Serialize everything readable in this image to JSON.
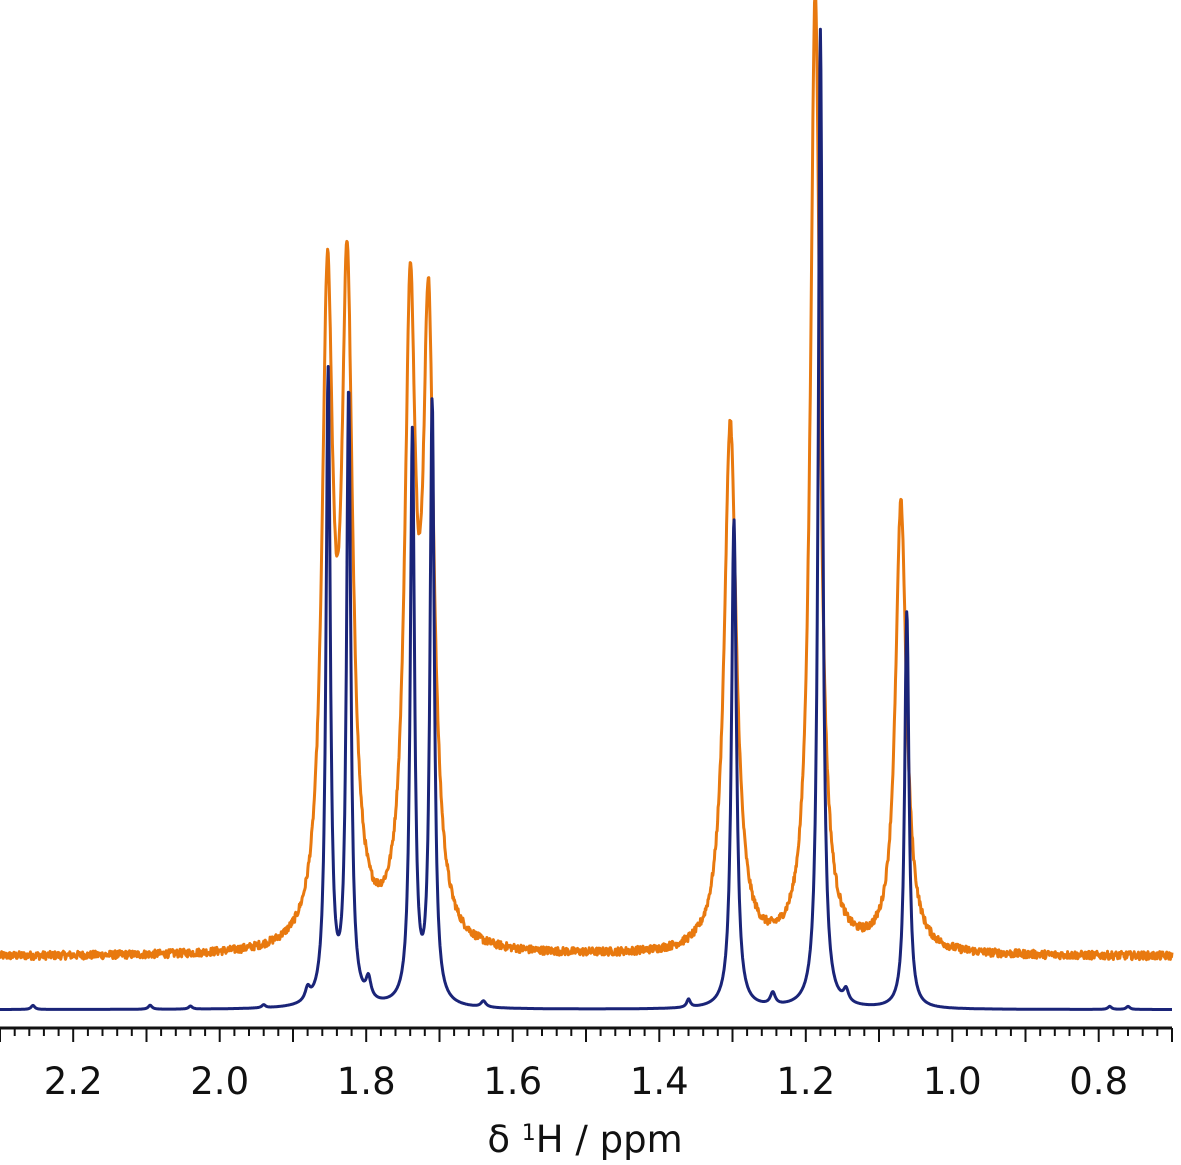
{
  "chart_data": {
    "type": "line",
    "title": "",
    "xlabel": {
      "prefix": "δ ",
      "superscript": "1",
      "suffix": "H / ppm"
    },
    "ylabel": "",
    "x_reversed": true,
    "xlim": [
      2.3,
      0.7
    ],
    "ylim": [
      0,
      1.0
    ],
    "grid": false,
    "legend": "none",
    "x_ticks_major": [
      2.2,
      2.0,
      1.8,
      1.6,
      1.4,
      1.2,
      1.0,
      0.8
    ],
    "x_tick_labels": [
      "2.2",
      "2.0",
      "1.8",
      "1.6",
      "1.4",
      "1.2",
      "1.0",
      "0.8"
    ],
    "series": [
      {
        "color": "#e8790f",
        "baseline": 0.07,
        "noise": 0.004,
        "peaks": [
          {
            "x": 1.853,
            "h": 0.62,
            "w": 0.009
          },
          {
            "x": 1.826,
            "h": 0.63,
            "w": 0.009
          },
          {
            "x": 1.74,
            "h": 0.6,
            "w": 0.009
          },
          {
            "x": 1.715,
            "h": 0.59,
            "w": 0.009
          },
          {
            "x": 1.303,
            "h": 0.52,
            "w": 0.01
          },
          {
            "x": 1.187,
            "h": 0.94,
            "w": 0.008
          },
          {
            "x": 1.07,
            "h": 0.44,
            "w": 0.009
          }
        ]
      },
      {
        "color": "#1a2478",
        "baseline": 0.018,
        "noise": 0,
        "peaks": [
          {
            "x": 1.852,
            "h": 0.62,
            "w": 0.0035
          },
          {
            "x": 1.824,
            "h": 0.6,
            "w": 0.0035
          },
          {
            "x": 1.737,
            "h": 0.56,
            "w": 0.0035
          },
          {
            "x": 1.71,
            "h": 0.59,
            "w": 0.0035
          },
          {
            "x": 1.298,
            "h": 0.48,
            "w": 0.004
          },
          {
            "x": 1.18,
            "h": 0.96,
            "w": 0.0035
          },
          {
            "x": 1.062,
            "h": 0.39,
            "w": 0.0035
          },
          {
            "x": 1.88,
            "h": 0.012,
            "w": 0.004
          },
          {
            "x": 1.797,
            "h": 0.02,
            "w": 0.004
          },
          {
            "x": 1.64,
            "h": 0.006,
            "w": 0.004
          },
          {
            "x": 1.36,
            "h": 0.008,
            "w": 0.003
          },
          {
            "x": 1.245,
            "h": 0.012,
            "w": 0.004
          },
          {
            "x": 1.145,
            "h": 0.012,
            "w": 0.004
          },
          {
            "x": 2.255,
            "h": 0.004,
            "w": 0.003
          },
          {
            "x": 2.095,
            "h": 0.004,
            "w": 0.003
          },
          {
            "x": 2.04,
            "h": 0.003,
            "w": 0.003
          },
          {
            "x": 1.94,
            "h": 0.003,
            "w": 0.003
          },
          {
            "x": 0.785,
            "h": 0.003,
            "w": 0.003
          },
          {
            "x": 0.76,
            "h": 0.003,
            "w": 0.003
          }
        ]
      }
    ]
  }
}
